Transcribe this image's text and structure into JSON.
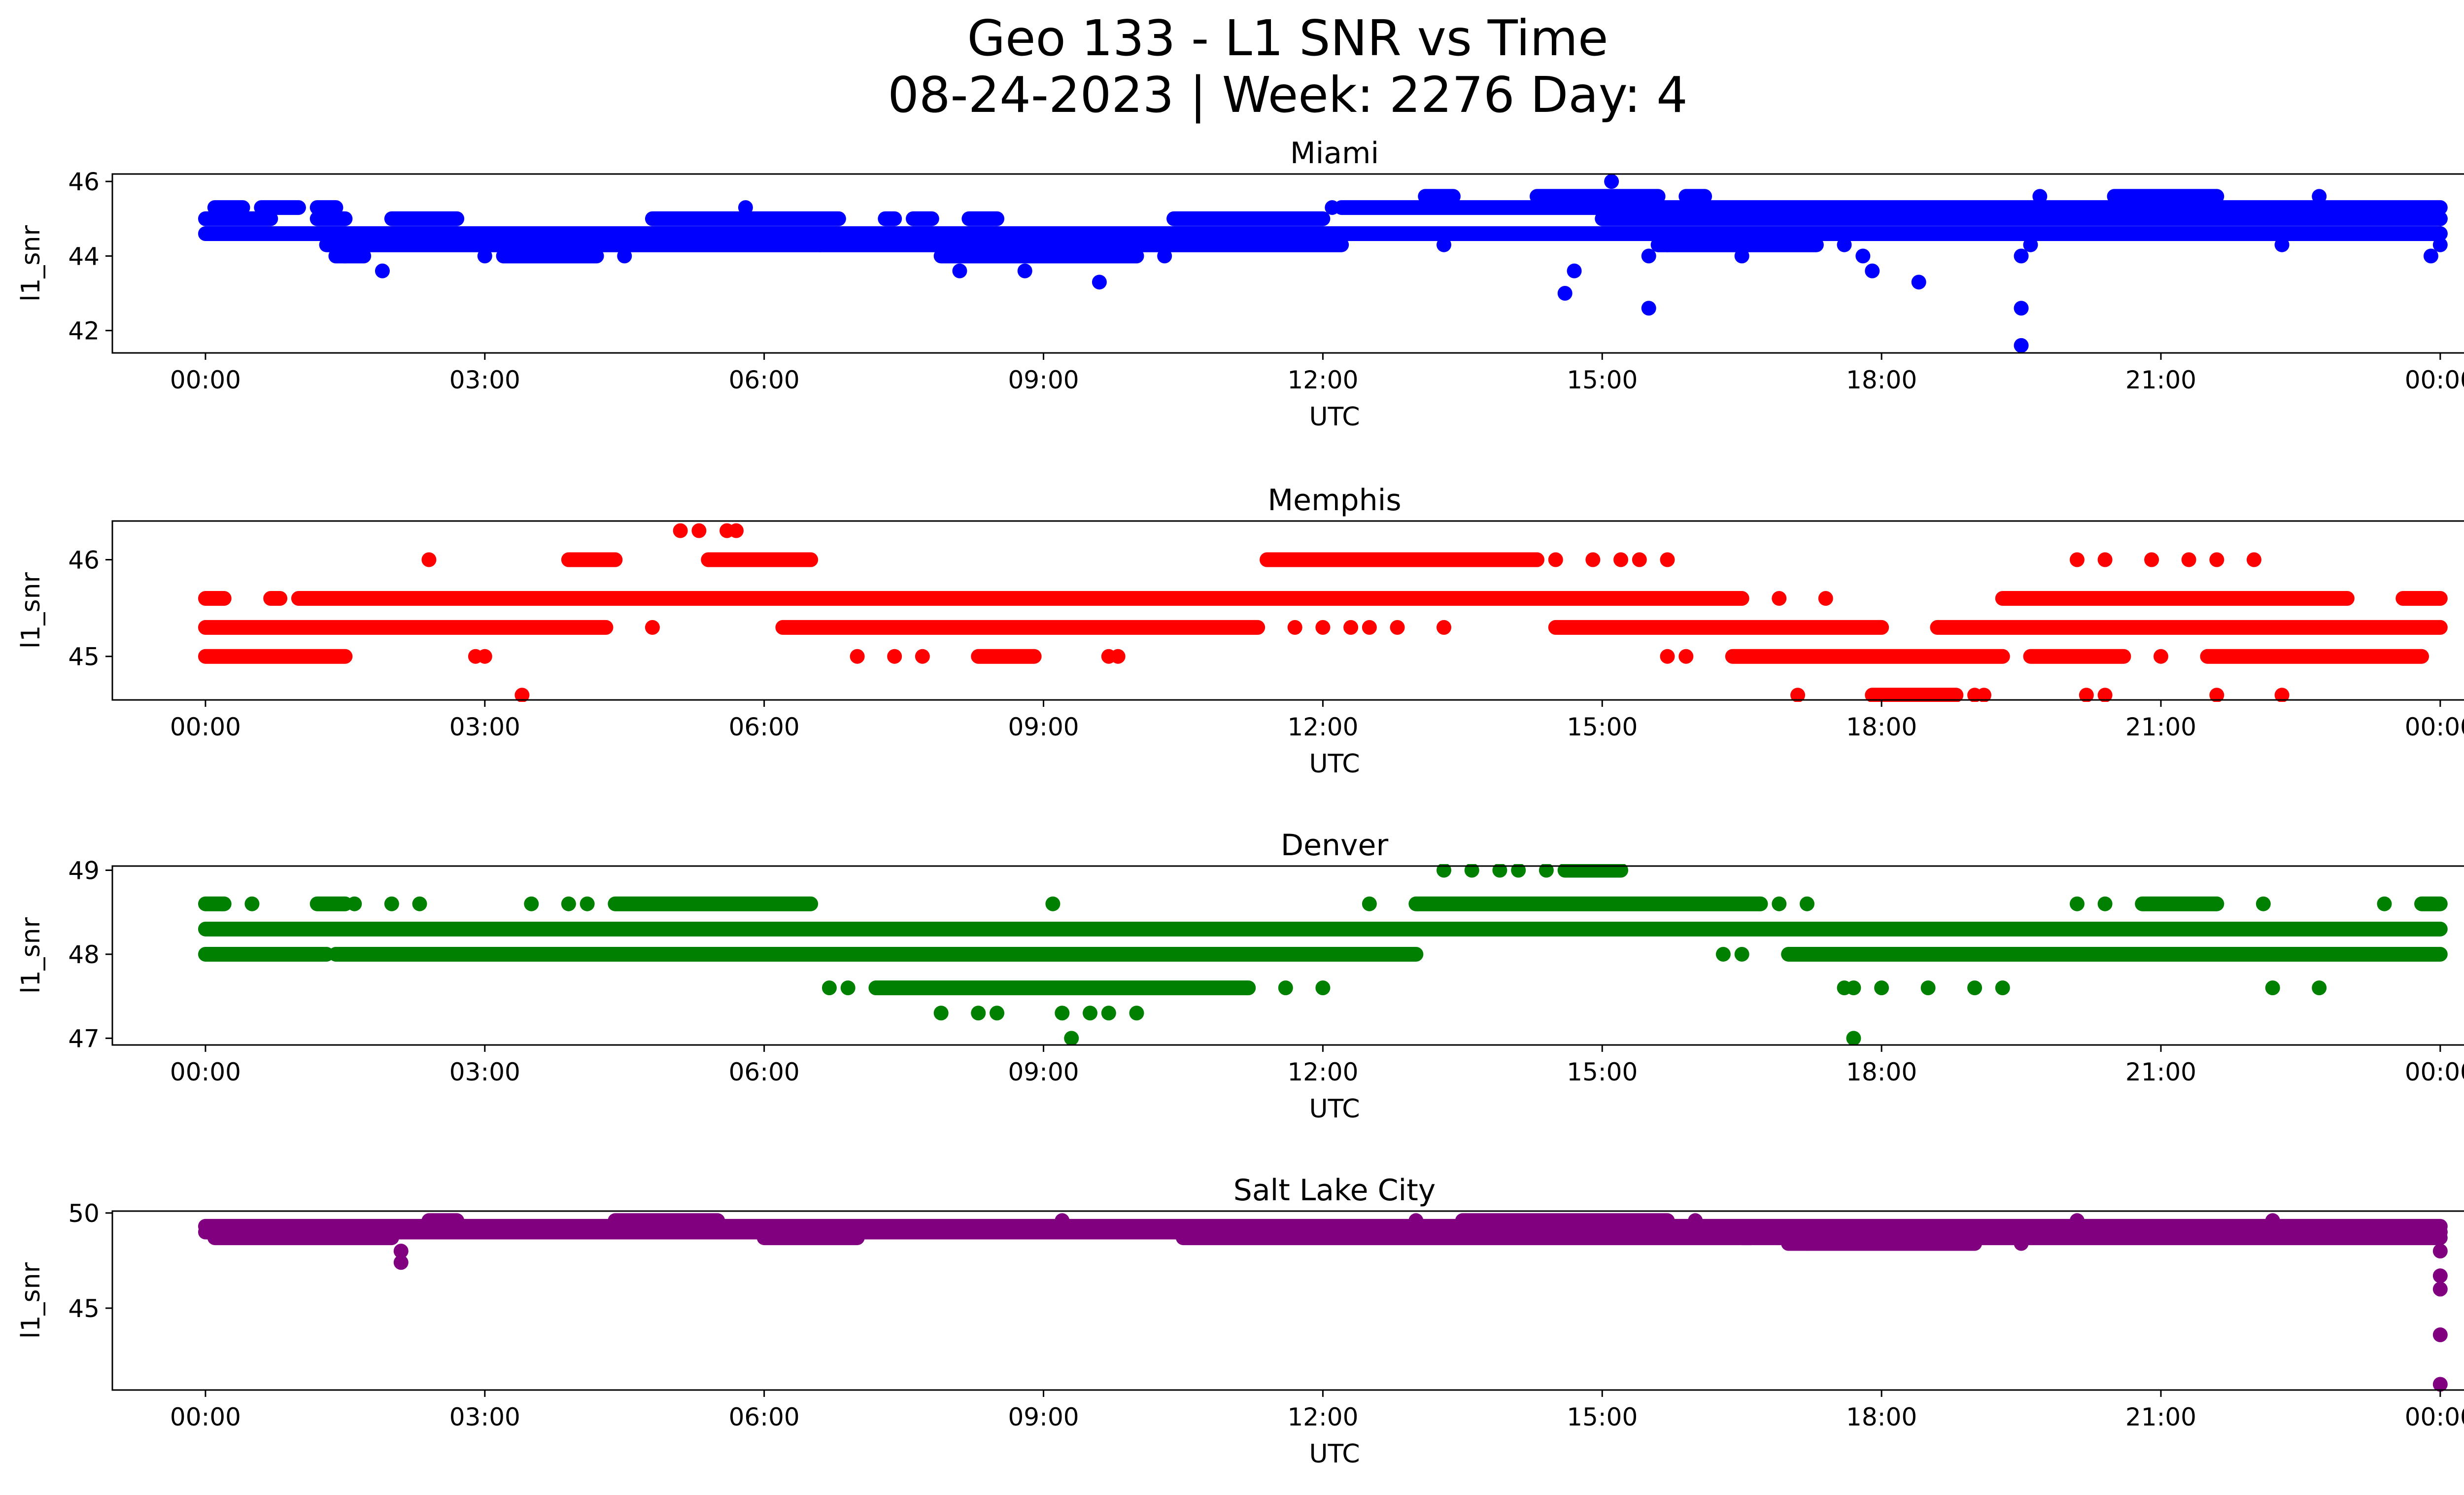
{
  "figure": {
    "title_line1": "Geo 133 - L1 SNR vs Time",
    "title_line2": "08-24-2023 | Week: 2276 Day: 4"
  },
  "chart_data": [
    {
      "type": "scatter",
      "title": "Miami",
      "xlabel": "UTC",
      "ylabel": "l1_snr",
      "color": "#0000ff",
      "x_unit": "hours UTC",
      "xlim": [
        -1.0,
        25.25
      ],
      "x_ticks": [
        0,
        3,
        6,
        9,
        12,
        15,
        18,
        21,
        24
      ],
      "x_tick_labels": [
        "00:00",
        "03:00",
        "06:00",
        "09:00",
        "12:00",
        "15:00",
        "18:00",
        "21:00",
        "00:00"
      ],
      "ylim": [
        41.4,
        46.2
      ],
      "y_ticks": [
        42,
        44,
        46
      ],
      "y_tick_labels": [
        "42",
        "44",
        "46"
      ],
      "bands": [
        {
          "y": 45.0,
          "segments": [
            [
              0.0,
              0.7
            ],
            [
              1.2,
              1.5
            ],
            [
              2.0,
              2.7
            ],
            [
              4.8,
              6.8
            ],
            [
              7.3,
              7.4
            ],
            [
              7.6,
              7.8
            ],
            [
              8.2,
              8.5
            ],
            [
              10.4,
              12.0
            ],
            [
              15.0,
              24.0
            ]
          ]
        },
        {
          "y": 44.6,
          "segments": [
            [
              0.0,
              24.0
            ]
          ]
        },
        {
          "y": 44.3,
          "segments": [
            [
              1.3,
              12.2
            ],
            [
              15.6,
              17.3
            ]
          ]
        },
        {
          "y": 44.0,
          "segments": [
            [
              1.4,
              1.7
            ],
            [
              3.2,
              4.2
            ],
            [
              7.9,
              10.0
            ]
          ]
        },
        {
          "y": 45.3,
          "segments": [
            [
              0.1,
              0.4
            ],
            [
              0.6,
              1.0
            ],
            [
              1.2,
              1.4
            ],
            [
              12.2,
              24.0
            ]
          ]
        },
        {
          "y": 45.6,
          "segments": [
            [
              13.1,
              13.4
            ],
            [
              14.3,
              15.6
            ],
            [
              15.9,
              16.1
            ],
            [
              20.5,
              21.6
            ]
          ]
        }
      ],
      "points": [
        [
          1.4,
          44.3
        ],
        [
          1.9,
          43.6
        ],
        [
          1.5,
          44.0
        ],
        [
          3.0,
          44.0
        ],
        [
          4.5,
          44.0
        ],
        [
          5.8,
          45.3
        ],
        [
          6.6,
          44.3
        ],
        [
          8.1,
          43.6
        ],
        [
          8.8,
          43.6
        ],
        [
          9.6,
          43.3
        ],
        [
          10.3,
          44.0
        ],
        [
          12.1,
          45.3
        ],
        [
          13.3,
          44.3
        ],
        [
          14.6,
          43.0
        ],
        [
          14.7,
          43.6
        ],
        [
          15.1,
          46.0
        ],
        [
          15.5,
          42.6
        ],
        [
          15.5,
          44.0
        ],
        [
          15.7,
          44.3
        ],
        [
          16.5,
          44.0
        ],
        [
          17.0,
          44.6
        ],
        [
          17.6,
          44.3
        ],
        [
          17.8,
          44.0
        ],
        [
          17.9,
          43.6
        ],
        [
          18.4,
          43.3
        ],
        [
          19.5,
          44.0
        ],
        [
          19.5,
          42.6
        ],
        [
          19.5,
          41.6
        ],
        [
          19.6,
          44.3
        ],
        [
          19.7,
          45.6
        ],
        [
          20.5,
          44.6
        ],
        [
          22.3,
          44.3
        ],
        [
          22.7,
          45.6
        ],
        [
          23.9,
          44.0
        ],
        [
          24.0,
          44.3
        ],
        [
          24.0,
          44.6
        ],
        [
          24.0,
          45.0
        ]
      ]
    },
    {
      "type": "scatter",
      "title": "Memphis",
      "xlabel": "UTC",
      "ylabel": "l1_snr",
      "color": "#ff0000",
      "x_unit": "hours UTC",
      "xlim": [
        -1.0,
        25.25
      ],
      "x_ticks": [
        0,
        3,
        6,
        9,
        12,
        15,
        18,
        21,
        24
      ],
      "x_tick_labels": [
        "00:00",
        "03:00",
        "06:00",
        "09:00",
        "12:00",
        "15:00",
        "18:00",
        "21:00",
        "00:00"
      ],
      "ylim": [
        44.55,
        46.4
      ],
      "y_ticks": [
        45,
        46
      ],
      "y_tick_labels": [
        "45",
        "46"
      ],
      "bands": [
        {
          "y": 45.6,
          "segments": [
            [
              0.0,
              0.2
            ],
            [
              0.7,
              0.8
            ],
            [
              1.0,
              16.5
            ],
            [
              19.3,
              23.0
            ],
            [
              23.6,
              24.0
            ]
          ]
        },
        {
          "y": 45.3,
          "segments": [
            [
              0.0,
              4.3
            ],
            [
              6.2,
              11.3
            ],
            [
              14.5,
              18.0
            ],
            [
              18.6,
              24.0
            ]
          ]
        },
        {
          "y": 45.0,
          "segments": [
            [
              0.0,
              1.5
            ],
            [
              8.3,
              8.9
            ],
            [
              16.4,
              19.3
            ],
            [
              19.6,
              20.6
            ],
            [
              21.5,
              23.8
            ]
          ]
        },
        {
          "y": 46.0,
          "segments": [
            [
              3.9,
              4.4
            ],
            [
              5.4,
              6.5
            ],
            [
              11.4,
              14.3
            ]
          ]
        },
        {
          "y": 44.6,
          "segments": [
            [
              17.9,
              18.8
            ]
          ]
        }
      ],
      "points": [
        [
          2.4,
          46.0
        ],
        [
          2.9,
          45.0
        ],
        [
          3.0,
          45.0
        ],
        [
          3.4,
          44.6
        ],
        [
          4.8,
          45.3
        ],
        [
          5.1,
          46.3
        ],
        [
          5.3,
          46.3
        ],
        [
          5.6,
          46.3
        ],
        [
          5.7,
          46.3
        ],
        [
          7.0,
          45.0
        ],
        [
          7.4,
          45.0
        ],
        [
          7.7,
          45.0
        ],
        [
          9.7,
          45.0
        ],
        [
          9.8,
          45.0
        ],
        [
          11.7,
          45.3
        ],
        [
          12.0,
          45.3
        ],
        [
          12.3,
          45.3
        ],
        [
          12.5,
          45.3
        ],
        [
          12.8,
          45.3
        ],
        [
          13.3,
          45.3
        ],
        [
          14.5,
          46.0
        ],
        [
          14.9,
          46.0
        ],
        [
          15.2,
          46.0
        ],
        [
          15.4,
          46.0
        ],
        [
          15.7,
          46.0
        ],
        [
          15.7,
          45.0
        ],
        [
          15.9,
          45.0
        ],
        [
          16.9,
          45.6
        ],
        [
          17.1,
          44.6
        ],
        [
          17.4,
          45.6
        ],
        [
          19.0,
          44.6
        ],
        [
          19.1,
          44.6
        ],
        [
          20.1,
          46.0
        ],
        [
          20.4,
          46.0
        ],
        [
          20.2,
          44.6
        ],
        [
          20.4,
          44.6
        ],
        [
          20.9,
          46.0
        ],
        [
          21.0,
          45.0
        ],
        [
          21.3,
          46.0
        ],
        [
          21.6,
          46.0
        ],
        [
          21.6,
          44.6
        ],
        [
          22.0,
          46.0
        ],
        [
          22.3,
          44.6
        ]
      ]
    },
    {
      "type": "scatter",
      "title": "Denver",
      "xlabel": "UTC",
      "ylabel": "l1_snr",
      "color": "#008000",
      "x_unit": "hours UTC",
      "xlim": [
        -1.0,
        25.25
      ],
      "x_ticks": [
        0,
        3,
        6,
        9,
        12,
        15,
        18,
        21,
        24
      ],
      "x_tick_labels": [
        "00:00",
        "03:00",
        "06:00",
        "09:00",
        "12:00",
        "15:00",
        "18:00",
        "21:00",
        "00:00"
      ],
      "ylim": [
        46.92,
        49.05
      ],
      "y_ticks": [
        47,
        48,
        49
      ],
      "y_tick_labels": [
        "47",
        "48",
        "49"
      ],
      "bands": [
        {
          "y": 48.3,
          "segments": [
            [
              0.0,
              24.0
            ]
          ]
        },
        {
          "y": 48.0,
          "segments": [
            [
              0.0,
              1.3
            ],
            [
              1.4,
              13.0
            ],
            [
              17.0,
              24.0
            ]
          ]
        },
        {
          "y": 47.6,
          "segments": [
            [
              7.2,
              11.2
            ]
          ]
        },
        {
          "y": 48.6,
          "segments": [
            [
              0.0,
              0.2
            ],
            [
              1.2,
              1.5
            ],
            [
              4.4,
              6.5
            ],
            [
              13.0,
              16.7
            ],
            [
              20.8,
              21.6
            ],
            [
              23.8,
              24.0
            ]
          ]
        },
        {
          "y": 49.0,
          "segments": [
            [
              14.6,
              15.2
            ]
          ]
        }
      ],
      "points": [
        [
          0.5,
          48.6
        ],
        [
          1.6,
          48.6
        ],
        [
          2.0,
          48.6
        ],
        [
          2.3,
          48.6
        ],
        [
          3.5,
          48.6
        ],
        [
          3.9,
          48.6
        ],
        [
          4.1,
          48.6
        ],
        [
          6.7,
          47.6
        ],
        [
          6.9,
          47.6
        ],
        [
          7.9,
          47.3
        ],
        [
          8.3,
          47.3
        ],
        [
          8.5,
          47.3
        ],
        [
          9.1,
          48.6
        ],
        [
          9.2,
          47.3
        ],
        [
          9.3,
          47.0
        ],
        [
          9.5,
          47.3
        ],
        [
          9.7,
          47.3
        ],
        [
          10.0,
          47.3
        ],
        [
          11.6,
          47.6
        ],
        [
          12.0,
          47.6
        ],
        [
          12.5,
          48.6
        ],
        [
          13.3,
          49.0
        ],
        [
          13.6,
          49.0
        ],
        [
          13.9,
          49.0
        ],
        [
          14.1,
          49.0
        ],
        [
          14.4,
          49.0
        ],
        [
          16.9,
          48.6
        ],
        [
          17.2,
          48.6
        ],
        [
          16.3,
          48.0
        ],
        [
          16.5,
          48.0
        ],
        [
          17.6,
          47.6
        ],
        [
          17.7,
          47.6
        ],
        [
          17.7,
          47.0
        ],
        [
          18.0,
          47.6
        ],
        [
          18.5,
          47.6
        ],
        [
          19.0,
          47.6
        ],
        [
          19.3,
          47.6
        ],
        [
          20.1,
          48.6
        ],
        [
          20.4,
          48.6
        ],
        [
          22.1,
          48.6
        ],
        [
          22.2,
          47.6
        ],
        [
          22.7,
          47.6
        ],
        [
          23.4,
          48.6
        ]
      ]
    },
    {
      "type": "scatter",
      "title": "Salt Lake City",
      "xlabel": "UTC",
      "ylabel": "l1_snr",
      "color": "#800080",
      "x_unit": "hours UTC",
      "xlim": [
        -1.0,
        25.25
      ],
      "x_ticks": [
        0,
        3,
        6,
        9,
        12,
        15,
        18,
        21,
        24
      ],
      "x_tick_labels": [
        "00:00",
        "03:00",
        "06:00",
        "09:00",
        "12:00",
        "15:00",
        "18:00",
        "21:00",
        "00:00"
      ],
      "ylim": [
        40.7,
        50.1
      ],
      "y_ticks": [
        45,
        50
      ],
      "y_tick_labels": [
        "45",
        "50"
      ],
      "bands": [
        {
          "y": 49.3,
          "segments": [
            [
              0.0,
              24.0
            ]
          ]
        },
        {
          "y": 49.0,
          "segments": [
            [
              0.0,
              17.0
            ],
            [
              19.0,
              24.0
            ]
          ]
        },
        {
          "y": 48.7,
          "segments": [
            [
              0.1,
              2.0
            ],
            [
              6.0,
              7.0
            ],
            [
              10.5,
              16.6
            ],
            [
              16.5,
              24.0
            ]
          ]
        },
        {
          "y": 48.4,
          "segments": [
            [
              17.0,
              19.0
            ]
          ]
        },
        {
          "y": 49.6,
          "segments": [
            [
              2.4,
              2.7
            ],
            [
              4.4,
              5.5
            ],
            [
              13.5,
              15.7
            ]
          ]
        }
      ],
      "points": [
        [
          2.1,
          48.0
        ],
        [
          2.1,
          47.4
        ],
        [
          9.2,
          49.6
        ],
        [
          13.0,
          49.6
        ],
        [
          16.0,
          49.6
        ],
        [
          17.2,
          48.4
        ],
        [
          19.5,
          48.4
        ],
        [
          20.1,
          49.6
        ],
        [
          22.2,
          49.6
        ],
        [
          24.0,
          49.0
        ],
        [
          24.0,
          48.0
        ],
        [
          24.0,
          46.7
        ],
        [
          24.0,
          46.0
        ],
        [
          24.0,
          43.6
        ],
        [
          24.0,
          41.0
        ]
      ]
    }
  ]
}
